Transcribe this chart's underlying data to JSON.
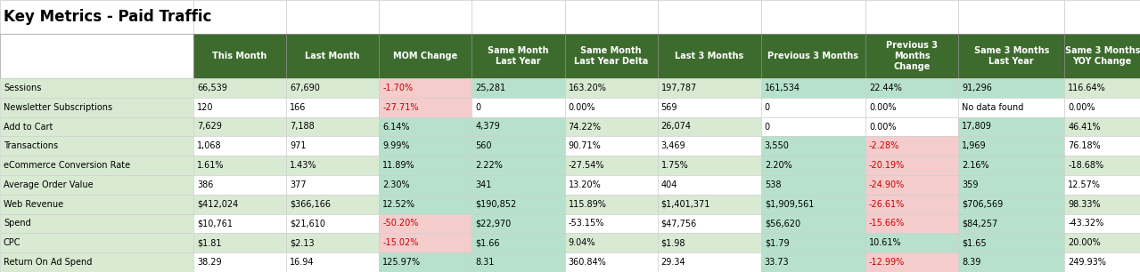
{
  "title": "Key Metrics - Paid Traffic",
  "columns": [
    "",
    "This Month",
    "Last Month",
    "MOM Change",
    "Same Month\nLast Year",
    "Same Month\nLast Year Delta",
    "Last 3 Months",
    "Previous 3 Months",
    "Previous 3\nMonths\nChange",
    "Same 3 Months\nLast Year",
    "Same 3 Months\nYOY Change"
  ],
  "rows": [
    [
      "Sessions",
      "66,539",
      "67,690",
      "-1.70%",
      "25,281",
      "163.20%",
      "197,787",
      "161,534",
      "22.44%",
      "91,296",
      "116.64%"
    ],
    [
      "Newsletter Subscriptions",
      "120",
      "166",
      "-27.71%",
      "0",
      "0.00%",
      "569",
      "0",
      "0.00%",
      "No data found",
      "0.00%"
    ],
    [
      "Add to Cart",
      "7,629",
      "7,188",
      "6.14%",
      "4,379",
      "74.22%",
      "26,074",
      "0",
      "0.00%",
      "17,809",
      "46.41%"
    ],
    [
      "Transactions",
      "1,068",
      "971",
      "9.99%",
      "560",
      "90.71%",
      "3,469",
      "3,550",
      "-2.28%",
      "1,969",
      "76.18%"
    ],
    [
      "eCommerce Conversion Rate",
      "1.61%",
      "1.43%",
      "11.89%",
      "2.22%",
      "-27.54%",
      "1.75%",
      "2.20%",
      "-20.19%",
      "2.16%",
      "-18.68%"
    ],
    [
      "Average Order Value",
      "386",
      "377",
      "2.30%",
      "341",
      "13.20%",
      "404",
      "538",
      "-24.90%",
      "359",
      "12.57%"
    ],
    [
      "Web Revenue",
      "$412,024",
      "$366,166",
      "12.52%",
      "$190,852",
      "115.89%",
      "$1,401,371",
      "$1,909,561",
      "-26.61%",
      "$706,569",
      "98.33%"
    ],
    [
      "Spend",
      "$10,761",
      "$21,610",
      "-50.20%",
      "$22,970",
      "-53.15%",
      "$47,756",
      "$56,620",
      "-15.66%",
      "$84,257",
      "-43.32%"
    ],
    [
      "CPC",
      "$1.81",
      "$2.13",
      "-15.02%",
      "$1.66",
      "9.04%",
      "$1.98",
      "$1.79",
      "10.61%",
      "$1.65",
      "20.00%"
    ],
    [
      "Return On Ad Spend",
      "38.29",
      "16.94",
      "125.97%",
      "8.31",
      "360.84%",
      "29.34",
      "33.73",
      "-12.99%",
      "8.39",
      "249.93%"
    ]
  ],
  "header_bg": "#3d6b2e",
  "header_fg": "#ffffff",
  "row_label_bg": "#d9ead3",
  "row_bg_even": "#d9ead3",
  "row_bg_odd": "#ffffff",
  "positive_bg": "#b7e1cd",
  "negative_bg": "#f4cccc",
  "neutral_bg": "#ffffff",
  "title_fontsize": 12,
  "header_fontsize": 7.0,
  "cell_fontsize": 7.0,
  "fig_width": 12.79,
  "fig_height": 3.06,
  "dpi": 100
}
